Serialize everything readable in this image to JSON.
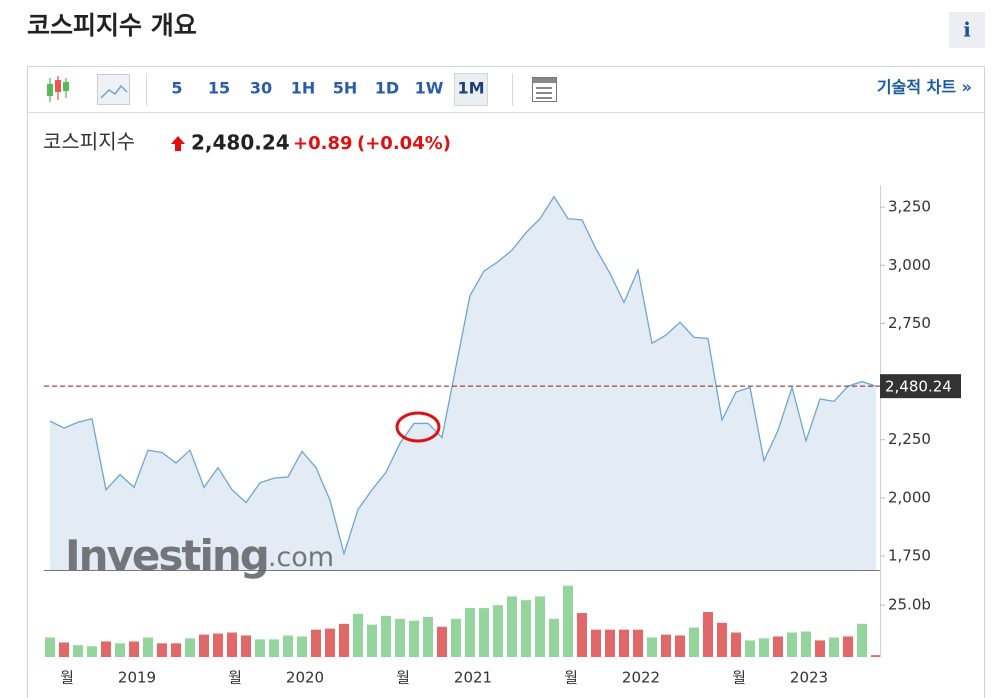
{
  "header": {
    "title": "코스피지수 개요",
    "info": "i"
  },
  "toolbar": {
    "intervals": [
      "5",
      "15",
      "30",
      "1H",
      "5H",
      "1D",
      "1W",
      "1M"
    ],
    "active": 7,
    "link": "기술적 차트 »"
  },
  "quote": {
    "name": "코스피지수",
    "change": "+0.89",
    "change_pct": "(+0.04%)"
  },
  "watermark": [
    "Investing",
    ".com"
  ],
  "chart_data": {
    "type": "area",
    "color": "#6ea6cf",
    "fill": "#e3ecf5",
    "grid": false,
    "categories": [
      null,
      "월",
      null,
      null,
      null,
      null,
      "2019",
      null,
      null,
      null,
      null,
      null,
      null,
      "월",
      null,
      null,
      null,
      null,
      "2020",
      null,
      null,
      null,
      null,
      null,
      null,
      "월",
      null,
      null,
      null,
      null,
      "2021",
      null,
      null,
      null,
      null,
      null,
      null,
      "월",
      null,
      null,
      null,
      null,
      "2022",
      null,
      null,
      null,
      null,
      null,
      null,
      "월",
      null,
      null,
      null,
      null,
      "2023",
      null,
      null,
      null,
      null,
      null
    ],
    "values": [
      2330,
      2300,
      2325,
      2340,
      2035,
      2100,
      2045,
      2205,
      2195,
      2150,
      2205,
      2045,
      2130,
      2035,
      1980,
      2065,
      2085,
      2090,
      2200,
      2130,
      1990,
      1760,
      1950,
      2035,
      2110,
      2235,
      2320,
      2320,
      2260,
      2565,
      2870,
      2975,
      3015,
      3065,
      3140,
      3200,
      3295,
      3200,
      3195,
      3070,
      2965,
      2840,
      2980,
      2665,
      2700,
      2755,
      2690,
      2685,
      2335,
      2455,
      2475,
      2160,
      2290,
      2475,
      2245,
      2425,
      2415,
      2480,
      2500,
      2480
    ],
    "ylim": [
      1690,
      3345
    ],
    "yticks": [
      {
        "value": 1750,
        "label": "1,750"
      },
      {
        "value": 2000,
        "label": "2,000"
      },
      {
        "value": 2250,
        "label": "2,250"
      },
      {
        "value": 2500,
        "label": "2,500"
      },
      {
        "value": 2750,
        "label": "2,750"
      },
      {
        "value": 3000,
        "label": "3,000"
      },
      {
        "value": 3250,
        "label": "3,250"
      }
    ],
    "last": {
      "value": 2480.24,
      "label": "2,480.24"
    },
    "volume": {
      "type": "bar",
      "values": [
        9.4,
        7,
        5.7,
        5.2,
        7.5,
        6.6,
        7.5,
        9.4,
        6.6,
        6.6,
        9,
        10.8,
        11.3,
        11.8,
        10.4,
        8.5,
        8.5,
        10.4,
        9.9,
        13.2,
        13.7,
        16,
        20.8,
        15.6,
        19.8,
        18.4,
        17.5,
        19.3,
        14.6,
        18.4,
        23.6,
        23.6,
        25,
        29.2,
        27.4,
        29.2,
        18.4,
        34.4,
        21.2,
        13.2,
        13.2,
        13.2,
        13.2,
        9.4,
        10.8,
        10.4,
        14.2,
        21.7,
        16.5,
        11.8,
        8,
        9,
        9.9,
        11.8,
        12.3,
        8,
        9.4,
        9.9,
        16,
        0.9
      ],
      "colors": [
        "#93d59d",
        "#e06868",
        "#93d59d",
        "#93d59d",
        "#e06868",
        "#93d59d",
        "#e06868",
        "#93d59d",
        "#e06868",
        "#e06868",
        "#93d59d",
        "#e06868",
        "#e06868",
        "#e06868",
        "#e06868",
        "#93d59d",
        "#93d59d",
        "#93d59d",
        "#93d59d",
        "#e06868",
        "#e06868",
        "#e06868",
        "#93d59d",
        "#93d59d",
        "#93d59d",
        "#93d59d",
        "#93d59d",
        "#93d59d",
        "#e06868",
        "#93d59d",
        "#93d59d",
        "#93d59d",
        "#93d59d",
        "#93d59d",
        "#93d59d",
        "#93d59d",
        "#93d59d",
        "#93d59d",
        "#e06868",
        "#e06868",
        "#e06868",
        "#e06868",
        "#e06868",
        "#93d59d",
        "#e06868",
        "#e06868",
        "#93d59d",
        "#e06868",
        "#e06868",
        "#e06868",
        "#93d59d",
        "#93d59d",
        "#e06868",
        "#93d59d",
        "#93d59d",
        "#e06868",
        "#93d59d",
        "#e06868",
        "#93d59d",
        "#e06868"
      ],
      "ylim": [
        0,
        41
      ],
      "yticks": [
        {
          "value": 25,
          "label": "25.0b"
        }
      ]
    }
  }
}
